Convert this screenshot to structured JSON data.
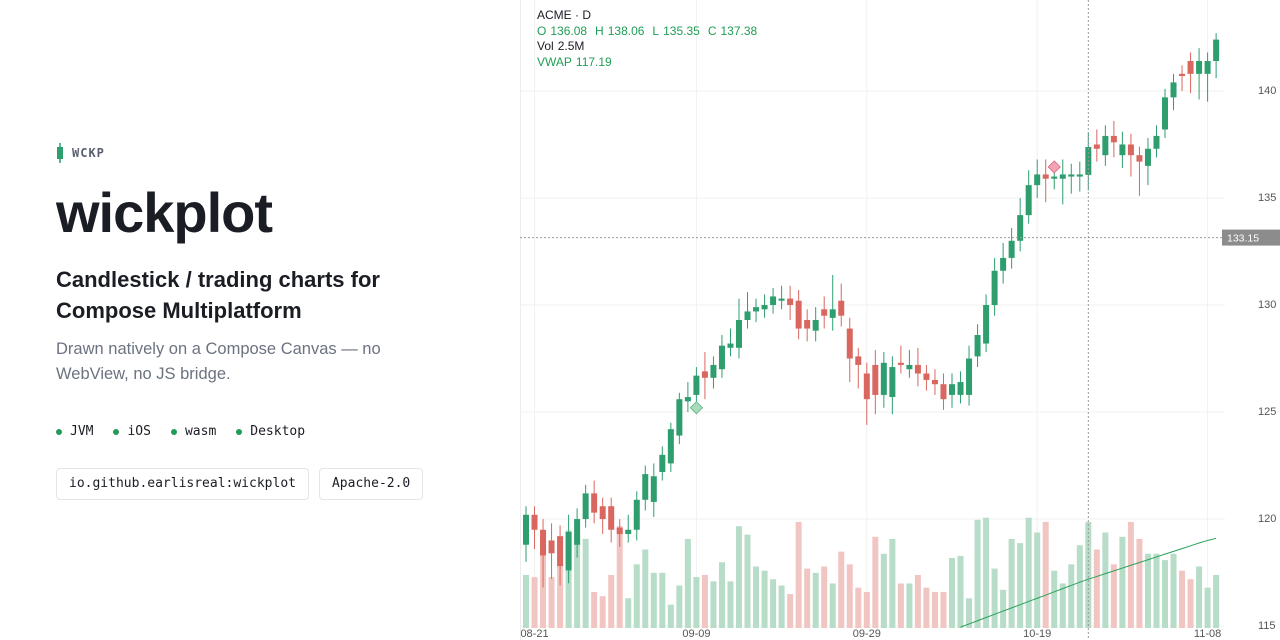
{
  "page": {
    "brand": "WCKP",
    "title": "wickplot",
    "subtitle": "Candlestick / trading charts for Compose Multiplatform",
    "description": "Drawn natively on a Compose Canvas — no WebView, no JS bridge.",
    "platforms": [
      "JVM",
      "iOS",
      "wasm",
      "Desktop"
    ],
    "badges": [
      "io.github.earlisreal:wickplot",
      "Apache-2.0"
    ]
  },
  "chart_data": {
    "type": "candlestick",
    "title": "ACME · D",
    "categories": [
      null,
      "08-21",
      null,
      null,
      null,
      null,
      null,
      null,
      null,
      null,
      null,
      null,
      null,
      null,
      null,
      null,
      null,
      null,
      null,
      null,
      "09-09",
      null,
      null,
      null,
      null,
      null,
      null,
      null,
      null,
      null,
      null,
      null,
      null,
      null,
      null,
      null,
      null,
      null,
      null,
      null,
      "09-29",
      null,
      null,
      null,
      null,
      null,
      null,
      null,
      null,
      null,
      null,
      null,
      null,
      null,
      null,
      null,
      null,
      null,
      null,
      null,
      "10-19",
      null,
      null,
      null,
      null,
      null,
      null,
      null,
      null,
      null,
      null,
      null,
      null,
      null,
      null,
      null,
      null,
      null,
      null,
      null,
      "11-08",
      null
    ],
    "ohlc": {
      "up_color": "#2f9e6e",
      "down_color": "#d9675f",
      "open": [
        118.8,
        120.2,
        119.5,
        119.0,
        119.2,
        117.6,
        118.8,
        120.0,
        121.2,
        120.6,
        120.6,
        119.6,
        119.3,
        119.5,
        120.9,
        120.8,
        122.2,
        122.6,
        123.9,
        125.5,
        125.8,
        126.9,
        126.6,
        127.0,
        128.0,
        128.0,
        129.3,
        129.7,
        129.8,
        130.0,
        130.2,
        130.3,
        130.2,
        129.3,
        128.8,
        129.8,
        129.4,
        130.2,
        128.9,
        127.6,
        126.8,
        127.2,
        125.8,
        125.7,
        127.3,
        127.0,
        127.2,
        126.8,
        126.5,
        126.3,
        125.8,
        125.8,
        125.8,
        127.6,
        128.2,
        130.0,
        131.6,
        132.2,
        133.0,
        134.2,
        135.6,
        136.1,
        135.9,
        135.9,
        136.0,
        136.0,
        136.08,
        137.5,
        137.0,
        137.9,
        137.0,
        137.5,
        137.0,
        136.5,
        137.3,
        138.2,
        139.7,
        140.8,
        141.4,
        140.8,
        140.8,
        141.4
      ],
      "high": [
        120.6,
        120.6,
        120.0,
        119.8,
        119.7,
        120.2,
        120.5,
        121.6,
        121.8,
        121.0,
        121.0,
        120.0,
        120.2,
        121.3,
        122.5,
        122.6,
        123.4,
        124.5,
        125.9,
        126.4,
        127.1,
        127.8,
        127.6,
        128.6,
        128.9,
        130.3,
        130.6,
        130.3,
        130.5,
        130.8,
        130.9,
        130.9,
        130.7,
        129.8,
        129.9,
        130.4,
        131.4,
        131.0,
        129.4,
        128.0,
        127.3,
        127.9,
        127.8,
        127.6,
        128.1,
        127.9,
        128.0,
        127.2,
        127.0,
        126.8,
        126.8,
        126.9,
        128.1,
        129.1,
        130.5,
        132.2,
        132.9,
        133.6,
        135.0,
        136.3,
        136.8,
        136.8,
        136.3,
        136.8,
        136.6,
        136.7,
        138.06,
        138.2,
        138.4,
        138.6,
        138.1,
        138.0,
        137.4,
        137.8,
        138.4,
        140.1,
        140.8,
        141.2,
        141.8,
        142.0,
        141.8,
        142.7
      ],
      "low": [
        118.0,
        118.6,
        116.8,
        117.2,
        116.9,
        117.0,
        118.2,
        119.6,
        119.8,
        119.3,
        118.9,
        118.7,
        118.9,
        119.0,
        120.4,
        120.1,
        121.8,
        122.2,
        123.5,
        125.0,
        125.5,
        125.6,
        126.1,
        126.6,
        127.6,
        127.5,
        128.9,
        129.2,
        129.4,
        129.6,
        129.8,
        129.3,
        128.4,
        128.3,
        128.3,
        128.9,
        128.8,
        129.0,
        126.4,
        126.1,
        124.4,
        124.9,
        125.2,
        124.9,
        126.8,
        126.6,
        126.2,
        126.0,
        125.8,
        125.1,
        125.2,
        125.4,
        125.3,
        127.1,
        127.8,
        129.5,
        131.0,
        131.7,
        132.5,
        133.8,
        135.0,
        134.8,
        135.4,
        134.7,
        135.2,
        135.3,
        135.35,
        136.7,
        136.5,
        136.9,
        136.4,
        136.0,
        135.1,
        135.6,
        136.9,
        137.8,
        139.1,
        140.0,
        139.9,
        139.6,
        139.5,
        140.6
      ],
      "close": [
        120.2,
        119.5,
        118.3,
        118.4,
        117.8,
        119.4,
        120.0,
        121.2,
        120.3,
        120.0,
        119.5,
        119.3,
        119.5,
        120.9,
        122.1,
        122.0,
        123.0,
        124.2,
        125.6,
        125.7,
        126.7,
        126.6,
        127.2,
        128.1,
        128.2,
        129.3,
        129.7,
        129.9,
        130.0,
        130.4,
        130.3,
        130.0,
        128.9,
        128.9,
        129.3,
        129.5,
        129.8,
        129.5,
        127.5,
        127.2,
        125.6,
        125.8,
        127.3,
        127.1,
        127.2,
        127.2,
        126.8,
        126.5,
        126.3,
        125.6,
        126.3,
        126.4,
        127.5,
        128.6,
        130.0,
        131.6,
        132.2,
        133.0,
        134.2,
        135.6,
        136.1,
        135.9,
        136.0,
        136.1,
        136.1,
        136.1,
        137.38,
        137.3,
        137.9,
        137.6,
        137.5,
        137.0,
        136.7,
        137.3,
        137.9,
        139.7,
        140.4,
        140.7,
        140.8,
        141.4,
        141.4,
        142.4
      ]
    },
    "volume": {
      "axis": "y2",
      "up_color": "#b7dcc8",
      "down_color": "#f1c6c2",
      "values": [
        1.25,
        1.2,
        1.95,
        1.2,
        1.5,
        2.3,
        2.2,
        2.1,
        0.85,
        0.75,
        1.25,
        2.4,
        0.7,
        1.5,
        1.85,
        1.3,
        1.3,
        0.55,
        1.0,
        2.1,
        1.2,
        1.25,
        1.1,
        1.55,
        1.1,
        2.4,
        2.2,
        1.45,
        1.35,
        1.15,
        1.0,
        0.8,
        2.5,
        1.4,
        1.3,
        1.45,
        1.05,
        1.8,
        1.5,
        0.95,
        0.85,
        2.15,
        1.75,
        2.1,
        1.05,
        1.05,
        1.25,
        0.95,
        0.85,
        0.85,
        1.65,
        1.7,
        0.7,
        2.55,
        2.6,
        1.4,
        0.9,
        2.1,
        2.0,
        2.6,
        2.25,
        2.5,
        1.35,
        1.05,
        1.5,
        1.95,
        2.5,
        1.85,
        2.25,
        1.5,
        2.15,
        2.5,
        2.1,
        1.75,
        1.75,
        1.6,
        1.75,
        1.35,
        1.15,
        1.45,
        0.95,
        1.25
      ]
    },
    "vwap": {
      "color": "#2aa05a",
      "values": [
        null,
        null,
        null,
        null,
        null,
        null,
        null,
        null,
        null,
        null,
        null,
        null,
        null,
        null,
        null,
        null,
        null,
        null,
        null,
        null,
        null,
        null,
        null,
        null,
        null,
        null,
        null,
        null,
        null,
        null,
        null,
        null,
        null,
        null,
        null,
        null,
        null,
        null,
        null,
        null,
        null,
        null,
        null,
        null,
        null,
        null,
        null,
        null,
        null,
        null,
        null,
        114.95,
        115.1,
        115.25,
        115.4,
        115.55,
        115.7,
        115.85,
        116.0,
        116.15,
        116.3,
        116.45,
        116.6,
        116.75,
        116.9,
        117.05,
        117.19,
        117.32,
        117.45,
        117.58,
        117.71,
        117.84,
        117.97,
        118.1,
        118.23,
        118.36,
        118.49,
        118.62,
        118.75,
        118.88,
        119.0,
        119.1
      ]
    },
    "markers": [
      {
        "color": "#a9dcbb",
        "stroke": "#5bb27f",
        "values": [
          null,
          null,
          null,
          null,
          null,
          null,
          null,
          null,
          null,
          null,
          null,
          null,
          null,
          null,
          null,
          null,
          null,
          null,
          null,
          null,
          125.2,
          null,
          null,
          null,
          null,
          null,
          null,
          null,
          null,
          null,
          null,
          null,
          null,
          null,
          null,
          null,
          null,
          null,
          null,
          null,
          null,
          null,
          null,
          null,
          null,
          null,
          null,
          null,
          null,
          null,
          null,
          null,
          null,
          null,
          null,
          null,
          null,
          null,
          null,
          null,
          null,
          null,
          null,
          null,
          null,
          null,
          null,
          null,
          null,
          null,
          null,
          null,
          null,
          null,
          null,
          null,
          null,
          null,
          null,
          null,
          null,
          null
        ]
      },
      {
        "color": "#f3a3b4",
        "stroke": "#d9677f",
        "values": [
          null,
          null,
          null,
          null,
          null,
          null,
          null,
          null,
          null,
          null,
          null,
          null,
          null,
          null,
          null,
          null,
          null,
          null,
          null,
          null,
          null,
          null,
          null,
          null,
          null,
          null,
          null,
          null,
          null,
          null,
          null,
          null,
          null,
          null,
          null,
          null,
          null,
          null,
          null,
          null,
          null,
          null,
          null,
          null,
          null,
          null,
          null,
          null,
          null,
          null,
          null,
          null,
          null,
          null,
          null,
          null,
          null,
          null,
          null,
          null,
          null,
          null,
          136.45,
          null,
          null,
          null,
          null,
          null,
          null,
          null,
          null,
          null,
          null,
          null,
          null,
          null,
          null,
          null,
          null,
          null,
          null,
          null
        ]
      }
    ],
    "legend": {
      "items": [
        {
          "label": "O",
          "value": 136.08
        },
        {
          "label": "H",
          "value": 138.06
        },
        {
          "label": "L",
          "value": 135.35
        },
        {
          "label": "C",
          "value": 137.38
        },
        {
          "label": "Vol",
          "value": 2.5,
          "value_label": "2.5M"
        },
        {
          "label": "VWAP",
          "value": 117.19
        }
      ]
    },
    "crosshair": {
      "price": 133.15
    },
    "ylim": [
      114.91,
      144.25
    ],
    "yticks": [
      115,
      120,
      125,
      130,
      135,
      140
    ],
    "y2lim": [
      0,
      14.8
    ],
    "grid": true
  }
}
